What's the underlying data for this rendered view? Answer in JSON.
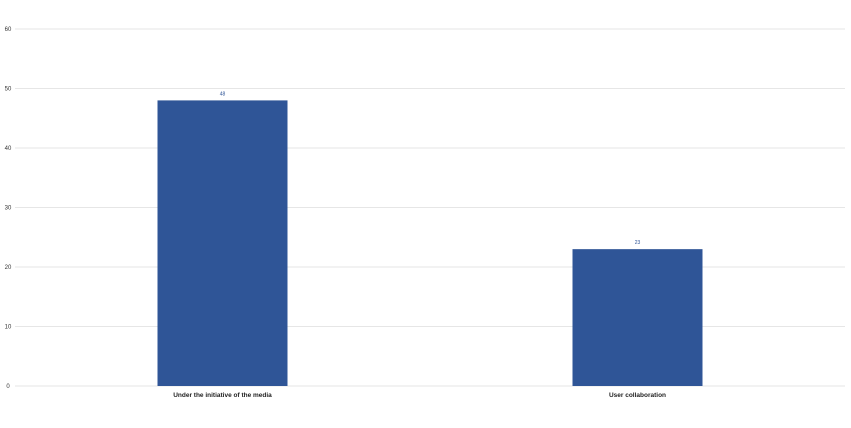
{
  "chart_data": {
    "type": "bar",
    "title": "",
    "xlabel": "",
    "ylabel": "",
    "categories": [
      "Under the initiative of the media",
      "User collaboration"
    ],
    "values": [
      48,
      23
    ],
    "data_labels": [
      "48",
      "23"
    ],
    "ylim": [
      0,
      60
    ],
    "yticks": [
      0,
      10,
      20,
      30,
      40,
      50,
      60
    ],
    "grid": true,
    "legend": "none",
    "colors": {
      "bar": "#2f5597",
      "grid": "#e6e6e6",
      "data_label": "#2f5597"
    }
  }
}
